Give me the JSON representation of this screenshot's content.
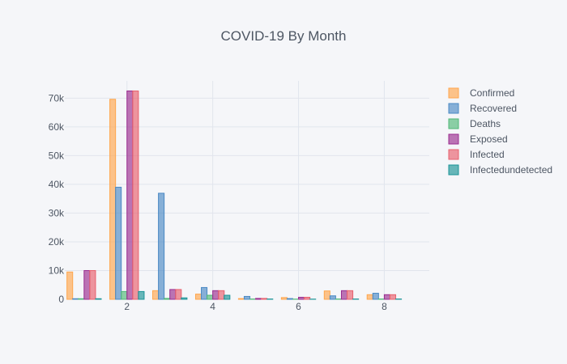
{
  "chart_data": {
    "type": "bar",
    "title": "COVID-19 By Month",
    "xlabel": "",
    "ylabel": "",
    "x": [
      1,
      2,
      3,
      4,
      5,
      6,
      7,
      8
    ],
    "x_ticks": [
      2,
      4,
      6,
      8
    ],
    "x_tick_labels": [
      "2",
      "4",
      "6",
      "8"
    ],
    "xlim": [
      0.55,
      9.05
    ],
    "ylim": [
      0,
      76000
    ],
    "y_ticks": [
      0,
      10000,
      20000,
      30000,
      40000,
      50000,
      60000,
      70000
    ],
    "y_tick_labels": [
      "0",
      "10k",
      "20k",
      "30k",
      "40k",
      "50k",
      "60k",
      "70k"
    ],
    "grid": true,
    "legend_position": "right",
    "series": [
      {
        "name": "Confirmed",
        "color": "#ffa64d",
        "values": [
          9500,
          69600,
          3000,
          1800,
          250,
          600,
          2900,
          1600
        ]
      },
      {
        "name": "Recovered",
        "color": "#4a89c4",
        "values": [
          200,
          39000,
          36900,
          4100,
          1000,
          250,
          1200,
          2100
        ]
      },
      {
        "name": "Deaths",
        "color": "#50b878",
        "values": [
          200,
          2700,
          300,
          1400,
          100,
          60,
          100,
          100
        ]
      },
      {
        "name": "Exposed",
        "color": "#9a2c8f",
        "values": [
          10000,
          72500,
          3400,
          3000,
          300,
          700,
          3000,
          1600
        ]
      },
      {
        "name": "Infected",
        "color": "#e8606d",
        "values": [
          10000,
          72500,
          3400,
          3000,
          300,
          700,
          3000,
          1600
        ]
      },
      {
        "name": "Infectedundetected",
        "color": "#1a9496",
        "values": [
          200,
          2700,
          500,
          1400,
          100,
          60,
          100,
          100
        ]
      }
    ]
  }
}
